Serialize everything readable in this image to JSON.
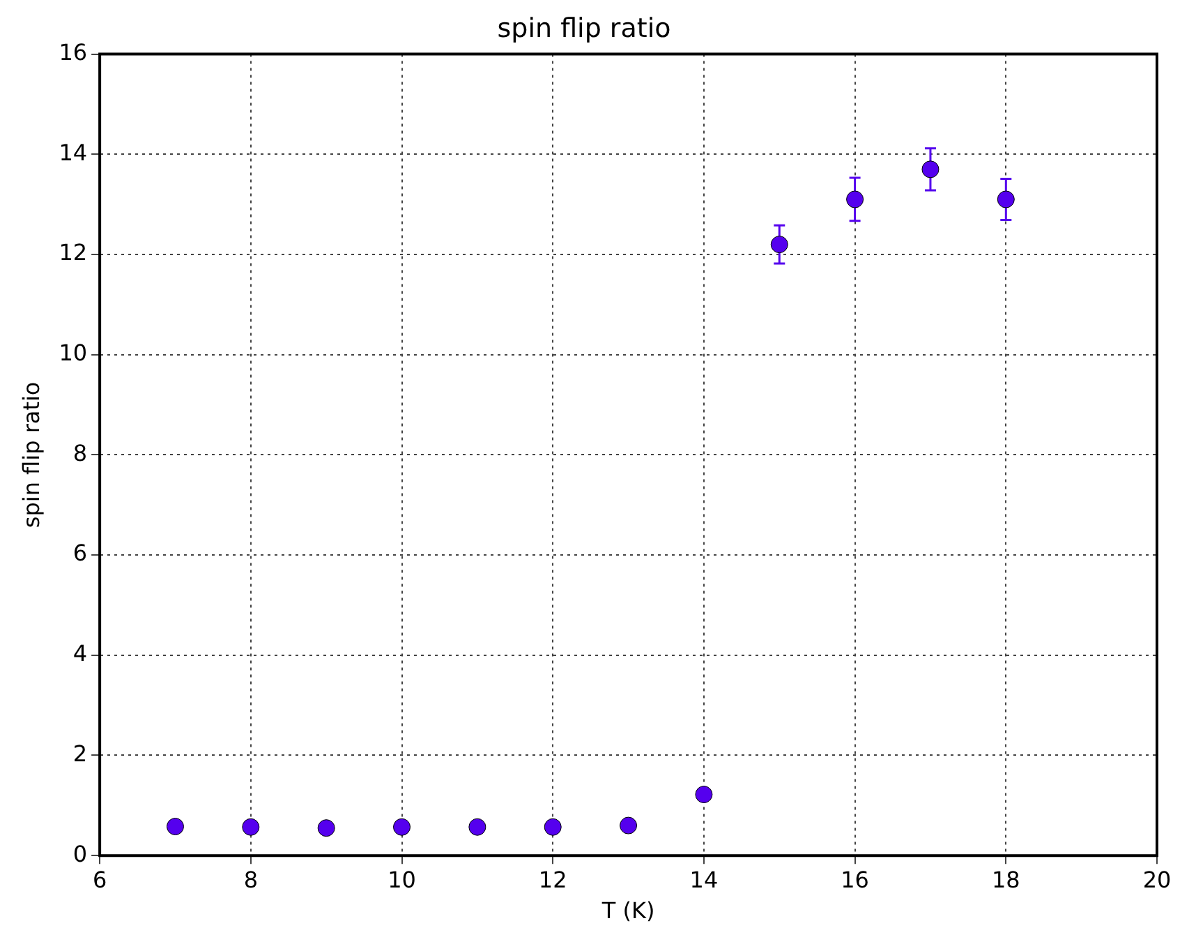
{
  "chart_data": {
    "type": "scatter",
    "title": "spin flip ratio",
    "xlabel": "T (K)",
    "ylabel": "spin flip ratio",
    "x": [
      7,
      8,
      9,
      10,
      11,
      12,
      13,
      14,
      15,
      16,
      17,
      18
    ],
    "values": [
      0.58,
      0.57,
      0.55,
      0.57,
      0.57,
      0.57,
      0.6,
      1.22,
      12.2,
      13.1,
      13.7,
      13.1
    ],
    "errors": [
      null,
      null,
      null,
      null,
      null,
      null,
      null,
      null,
      0.38,
      0.43,
      0.42,
      0.41
    ],
    "color": "#5500ee",
    "marker": "circle",
    "grid": true,
    "xlim": [
      6,
      20
    ],
    "xticks": [
      6,
      8,
      10,
      12,
      14,
      16,
      18,
      20
    ],
    "ylim": [
      0,
      16
    ],
    "yticks": [
      0,
      2,
      4,
      6,
      8,
      10,
      12,
      14,
      16
    ]
  }
}
